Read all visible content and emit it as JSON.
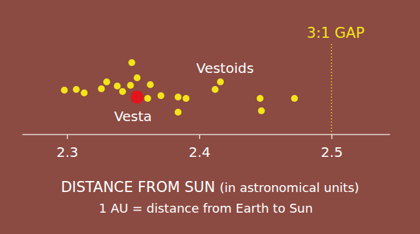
{
  "chart_data": {
    "type": "scatter",
    "xlabel": "DISTANCE FROM SUN (in astronomical units)",
    "note": "1 AU = distance from Earth to Sun",
    "xlim": [
      2.266,
      2.544
    ],
    "xticks": [
      2.3,
      2.4,
      2.5
    ],
    "ylim": [
      0,
      135
    ],
    "tick_labels": "x",
    "grid": false,
    "series": [
      {
        "name": "Vestoids",
        "color": "#f3e41a",
        "marker": "circle",
        "x": [
          2.298,
          2.307,
          2.313,
          2.326,
          2.33,
          2.338,
          2.342,
          2.348,
          2.349,
          2.353,
          2.361,
          2.363,
          2.371,
          2.384,
          2.384,
          2.39,
          2.412,
          2.416,
          2.446,
          2.447,
          2.472
        ],
        "values": [
          64,
          65,
          60,
          66,
          76,
          70,
          62,
          71,
          104,
          82,
          52,
          72,
          56,
          54,
          32,
          52,
          65,
          76,
          52,
          34,
          52
        ]
      },
      {
        "name": "Vesta",
        "color": "#e3151c",
        "marker": "circle",
        "x": [
          2.353
        ],
        "values": [
          54
        ]
      }
    ],
    "annotations": [
      {
        "text": "3:1 GAP",
        "x": 2.5,
        "color": "#f3e41a",
        "line_style": "dotted"
      }
    ]
  }
}
